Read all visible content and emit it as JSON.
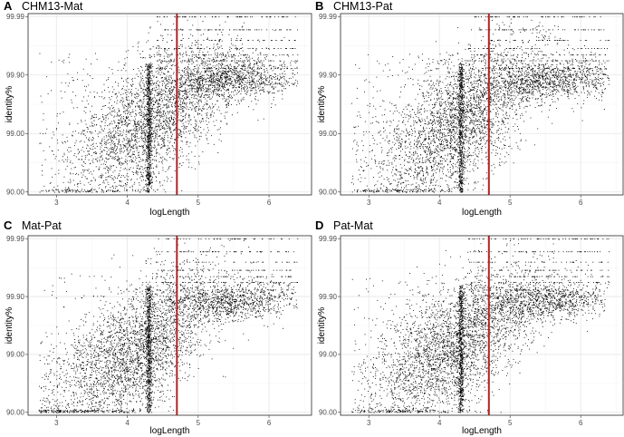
{
  "chart_data": [
    {
      "type": "scatter",
      "panel_letter": "A",
      "title": "CHM13-Mat",
      "xlabel": "logLength",
      "ylabel": "identity%",
      "xticks": [
        3,
        4,
        5,
        6
      ],
      "yticks": [
        "90.00",
        "99.00",
        "99.90",
        "99.99"
      ],
      "xlim": [
        2.6,
        6.6
      ],
      "y_scale": "log_error",
      "reference_line_x": 4.7,
      "reference_line_color": "#b22222",
      "point_color": "#000000",
      "grid": true,
      "density_model": {
        "stripe_x": 4.3,
        "bulk_center_x": 4.4,
        "upper_cluster_x": 5.5,
        "pattern": "dense mass rising from lower-left to upper-right"
      }
    },
    {
      "type": "scatter",
      "panel_letter": "B",
      "title": "CHM13-Pat",
      "xlabel": "logLength",
      "ylabel": "identity%",
      "xticks": [
        3,
        4,
        5,
        6
      ],
      "yticks": [
        "90.00",
        "99.00",
        "99.90",
        "99.99"
      ],
      "xlim": [
        2.6,
        6.6
      ],
      "y_scale": "log_error",
      "reference_line_x": 4.7,
      "reference_line_color": "#b22222",
      "point_color": "#000000",
      "grid": true,
      "density_model": {
        "stripe_x": 4.3,
        "bulk_center_x": 4.3,
        "upper_cluster_x": 5.6,
        "pattern": "dense mass rising from lower-left to upper-right"
      }
    },
    {
      "type": "scatter",
      "panel_letter": "C",
      "title": "Mat-Pat",
      "xlabel": "logLength",
      "ylabel": "identity%",
      "xticks": [
        3,
        4,
        5,
        6
      ],
      "yticks": [
        "90.00",
        "99.00",
        "99.90",
        "99.99"
      ],
      "xlim": [
        2.6,
        6.6
      ],
      "y_scale": "log_error",
      "reference_line_x": 4.7,
      "reference_line_color": "#b22222",
      "point_color": "#000000",
      "grid": true,
      "density_model": {
        "stripe_x": 4.3,
        "bulk_center_x": 4.1,
        "upper_cluster_x": 5.5,
        "pattern": "dense mass rising from lower-left to upper-right"
      }
    },
    {
      "type": "scatter",
      "panel_letter": "D",
      "title": "Pat-Mat",
      "xlabel": "logLength",
      "ylabel": "identity%",
      "xticks": [
        3,
        4,
        5,
        6
      ],
      "yticks": [
        "90.00",
        "99.00",
        "99.90",
        "99.99"
      ],
      "xlim": [
        2.6,
        6.6
      ],
      "y_scale": "log_error",
      "reference_line_x": 4.7,
      "reference_line_color": "#b22222",
      "point_color": "#000000",
      "grid": true,
      "density_model": {
        "stripe_x": 4.3,
        "bulk_center_x": 4.2,
        "upper_cluster_x": 5.5,
        "pattern": "dense mass rising from lower-left to upper-right"
      }
    }
  ]
}
